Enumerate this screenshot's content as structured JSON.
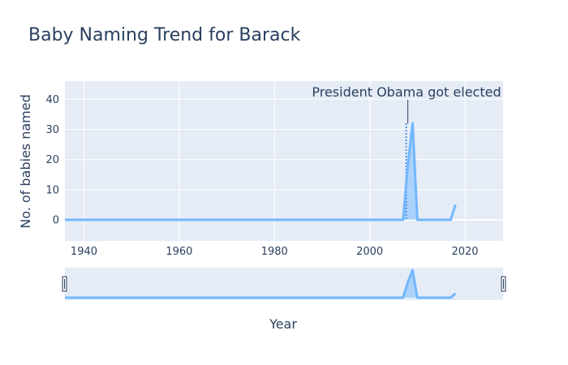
{
  "chart_data": {
    "type": "line",
    "title": "Baby Naming Trend for Barack",
    "xlabel": "Year",
    "ylabel": "No. of babies named",
    "xlim": [
      1936,
      2028
    ],
    "ylim": [
      -7,
      46
    ],
    "x_ticks": [
      1940,
      1960,
      1980,
      2000,
      2020
    ],
    "y_ticks": [
      0,
      10,
      20,
      30,
      40
    ],
    "grid": true,
    "legend": "none",
    "range_slider": true,
    "series": [
      {
        "color": "#72b7fe",
        "fill": "area-under-line",
        "x": [
          1936,
          2007,
          2008,
          2009,
          2010,
          2017,
          2018
        ],
        "y": [
          0,
          0,
          18,
          32,
          0,
          0,
          5
        ]
      }
    ],
    "annotation": {
      "text": "President Obama got elected",
      "x": 2008,
      "y": 32,
      "marker_line": "dotted-vertical"
    }
  }
}
